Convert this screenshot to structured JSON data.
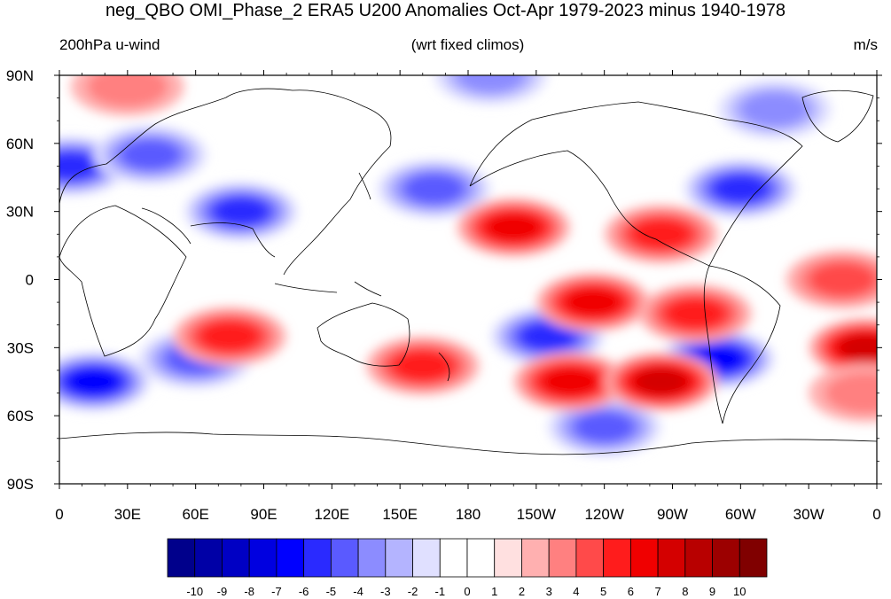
{
  "title": "neg_QBO OMI_Phase_2 ERA5 U200 Anomalies Oct-Apr 1979-2023 minus 1940-1978",
  "subtitle_left": "200hPa u-wind",
  "subtitle_center": "(wrt fixed climos)",
  "subtitle_right": "m/s",
  "lat_labels": [
    "90N",
    "60N",
    "30N",
    "0",
    "30S",
    "60S",
    "90S"
  ],
  "lon_labels": [
    "0",
    "30E",
    "60E",
    "90E",
    "120E",
    "150E",
    "180",
    "150W",
    "120W",
    "90W",
    "60W",
    "30W",
    "0"
  ],
  "colorbar": {
    "labels": [
      "-10",
      "-9",
      "-8",
      "-7",
      "-6",
      "-5",
      "-4",
      "-3",
      "-2",
      "-1",
      "0",
      "1",
      "2",
      "3",
      "4",
      "5",
      "6",
      "7",
      "8",
      "9",
      "10"
    ],
    "colors": [
      "#00008b",
      "#0000a6",
      "#0000c4",
      "#0000e0",
      "#0000ff",
      "#2a2aff",
      "#5a5aff",
      "#8c8cff",
      "#b4b4ff",
      "#e0e0ff",
      "#ffffff",
      "#ffffff",
      "#ffe0e0",
      "#ffb0b0",
      "#ff8080",
      "#ff4a4a",
      "#ff1c1c",
      "#f00000",
      "#d40000",
      "#b80000",
      "#9c0000",
      "#800000"
    ]
  },
  "chart_data": {
    "type": "heatmap",
    "variable": "U200 anomaly",
    "units": "m/s",
    "x_axis": "longitude 0 to 360 (0E eastward to 0)",
    "y_axis": "latitude 90S to 90N",
    "levels": [
      -10,
      -9,
      -8,
      -7,
      -6,
      -5,
      -4,
      -3,
      -2,
      -1,
      0,
      1,
      2,
      3,
      4,
      5,
      6,
      7,
      8,
      9,
      10
    ],
    "anomaly_centers": [
      {
        "lon": 5,
        "lat": 50,
        "value": -6
      },
      {
        "lon": 40,
        "lat": 55,
        "value": -5
      },
      {
        "lon": 80,
        "lat": 30,
        "value": -6
      },
      {
        "lon": 165,
        "lat": 40,
        "value": -5
      },
      {
        "lon": 190,
        "lat": 90,
        "value": -4
      },
      {
        "lon": 300,
        "lat": 40,
        "value": -6
      },
      {
        "lon": 315,
        "lat": 75,
        "value": -4
      },
      {
        "lon": 215,
        "lat": -25,
        "value": -6
      },
      {
        "lon": 290,
        "lat": -35,
        "value": -7
      },
      {
        "lon": 15,
        "lat": -45,
        "value": -7
      },
      {
        "lon": 60,
        "lat": -35,
        "value": -5
      },
      {
        "lon": 240,
        "lat": -65,
        "value": -5
      },
      {
        "lon": 200,
        "lat": 23,
        "value": 6
      },
      {
        "lon": 235,
        "lat": -10,
        "value": 6
      },
      {
        "lon": 225,
        "lat": -45,
        "value": 6
      },
      {
        "lon": 265,
        "lat": -45,
        "value": 7
      },
      {
        "lon": 265,
        "lat": 20,
        "value": 5
      },
      {
        "lon": 355,
        "lat": -30,
        "value": 7
      },
      {
        "lon": 75,
        "lat": -25,
        "value": 5
      },
      {
        "lon": 160,
        "lat": -38,
        "value": 5
      },
      {
        "lon": 280,
        "lat": -15,
        "value": 5
      },
      {
        "lon": 345,
        "lat": 0,
        "value": 4
      },
      {
        "lon": 30,
        "lat": 85,
        "value": 3
      },
      {
        "lon": 355,
        "lat": -50,
        "value": 3
      }
    ]
  }
}
